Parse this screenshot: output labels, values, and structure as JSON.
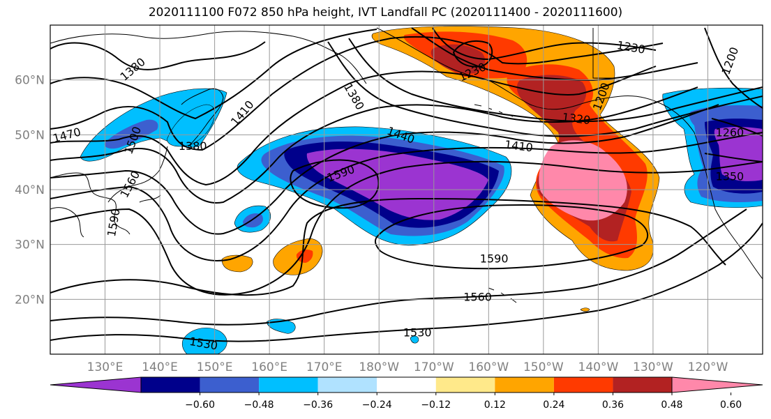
{
  "title": "2020111100 F072 850 hPa height, IVT Landfall PC (2020111400 - 2020111600)",
  "map": {
    "lon_range": [
      120,
      250
    ],
    "lat_range": [
      10,
      70
    ],
    "lat_ticks": [
      {
        "lat": 60,
        "label": "60°N"
      },
      {
        "lat": 50,
        "label": "50°N"
      },
      {
        "lat": 40,
        "label": "40°N"
      },
      {
        "lat": 30,
        "label": "30°N"
      },
      {
        "lat": 20,
        "label": "20°N"
      }
    ],
    "lon_ticks": [
      {
        "lon": 130,
        "label": "130°E"
      },
      {
        "lon": 140,
        "label": "140°E"
      },
      {
        "lon": 150,
        "label": "150°E"
      },
      {
        "lon": 160,
        "label": "160°E"
      },
      {
        "lon": 170,
        "label": "170°E"
      },
      {
        "lon": 180,
        "label": "180°W"
      },
      {
        "lon": 190,
        "label": "170°W"
      },
      {
        "lon": 200,
        "label": "160°W"
      },
      {
        "lon": 210,
        "label": "150°W"
      },
      {
        "lon": 220,
        "label": "140°W"
      },
      {
        "lon": 230,
        "label": "130°W"
      },
      {
        "lon": 240,
        "label": "120°W"
      }
    ],
    "contour_labels": [
      {
        "text": "1380",
        "lon": 135,
        "lat": 62,
        "rot": -40
      },
      {
        "text": "1470",
        "lon": 123,
        "lat": 50,
        "rot": -15
      },
      {
        "text": "1500",
        "lon": 135,
        "lat": 49,
        "rot": -70
      },
      {
        "text": "1380",
        "lon": 146,
        "lat": 48,
        "rot": 0
      },
      {
        "text": "1410",
        "lon": 155,
        "lat": 54,
        "rot": -50
      },
      {
        "text": "1380",
        "lon": 175.5,
        "lat": 57,
        "rot": 60
      },
      {
        "text": "1560",
        "lon": 134.5,
        "lat": 41,
        "rot": -62
      },
      {
        "text": "1590",
        "lon": 131.5,
        "lat": 34,
        "rot": -80
      },
      {
        "text": "1440",
        "lon": 184,
        "lat": 50,
        "rot": 20
      },
      {
        "text": "1410",
        "lon": 205.5,
        "lat": 48,
        "rot": 7
      },
      {
        "text": "1320",
        "lon": 216,
        "lat": 53,
        "rot": 7
      },
      {
        "text": "1230",
        "lon": 197,
        "lat": 61.5,
        "rot": -25
      },
      {
        "text": "1230",
        "lon": 226,
        "lat": 66,
        "rot": 10
      },
      {
        "text": "1200",
        "lon": 220.5,
        "lat": 57,
        "rot": -70
      },
      {
        "text": "1200",
        "lon": 244,
        "lat": 63.5,
        "rot": -70
      },
      {
        "text": "1260",
        "lon": 244,
        "lat": 50.5,
        "rot": 0
      },
      {
        "text": "1350",
        "lon": 244,
        "lat": 42.5,
        "rot": 0
      },
      {
        "text": "1590",
        "lon": 173,
        "lat": 43,
        "rot": -20
      },
      {
        "text": "1590",
        "lon": 201,
        "lat": 27.5,
        "rot": 0
      },
      {
        "text": "1560",
        "lon": 198,
        "lat": 20.5,
        "rot": 0
      },
      {
        "text": "1530",
        "lon": 148,
        "lat": 12,
        "rot": 10
      },
      {
        "text": "1530",
        "lon": 187,
        "lat": 14,
        "rot": 0
      }
    ]
  },
  "colorbar": {
    "tick_labels": [
      "−0.60",
      "−0.48",
      "−0.36",
      "−0.24",
      "−0.12",
      "0.12",
      "0.24",
      "0.36",
      "0.48",
      "0.60"
    ],
    "colors": [
      "#9b34d1",
      "#00008b",
      "#3c5fcf",
      "#00bfff",
      "#b0e2ff",
      "#ffffff",
      "#ffe98a",
      "#ffa500",
      "#ff3a00",
      "#b22222",
      "#ff88aa"
    ]
  }
}
